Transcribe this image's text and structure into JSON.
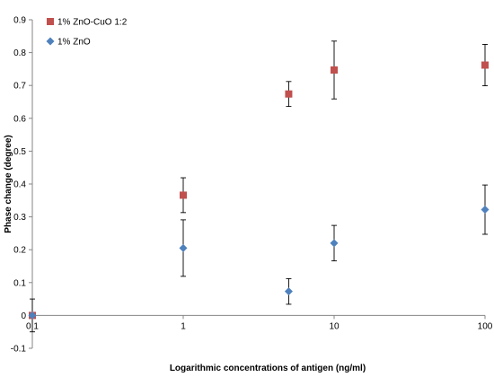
{
  "chart_data": {
    "type": "scatter",
    "title": "",
    "xlabel": "Logarithmic concentrations of antigen (ng/ml)",
    "ylabel": "Phase change (degree)",
    "x_scale": "log",
    "xlim": [
      0.1,
      100
    ],
    "ylim": [
      -0.1,
      0.9
    ],
    "x_ticks": [
      "0.1",
      "1",
      "10",
      "100"
    ],
    "y_ticks": [
      "-0.1",
      "0",
      "0.1",
      "0.2",
      "0.3",
      "0.4",
      "0.5",
      "0.6",
      "0.7",
      "0.8",
      "0.9"
    ],
    "grid": false,
    "legend_position": "top-left",
    "series": [
      {
        "name": "1% ZnO-CuO 1:2",
        "marker": "square",
        "color": "#c0504d",
        "points": [
          {
            "x": 0.1,
            "y": 0.0,
            "err": 0.0
          },
          {
            "x": 1,
            "y": 0.366,
            "err": 0.053
          },
          {
            "x": 5,
            "y": 0.674,
            "err": 0.038
          },
          {
            "x": 10,
            "y": 0.747,
            "err": 0.088
          },
          {
            "x": 100,
            "y": 0.762,
            "err": 0.063
          }
        ]
      },
      {
        "name": "1% ZnO",
        "marker": "diamond",
        "color": "#4f81bd",
        "points": [
          {
            "x": 0.1,
            "y": 0.0,
            "err": 0.05
          },
          {
            "x": 1,
            "y": 0.205,
            "err": 0.086
          },
          {
            "x": 5,
            "y": 0.073,
            "err": 0.039
          },
          {
            "x": 10,
            "y": 0.22,
            "err": 0.054
          },
          {
            "x": 100,
            "y": 0.322,
            "err": 0.075
          }
        ]
      }
    ]
  }
}
